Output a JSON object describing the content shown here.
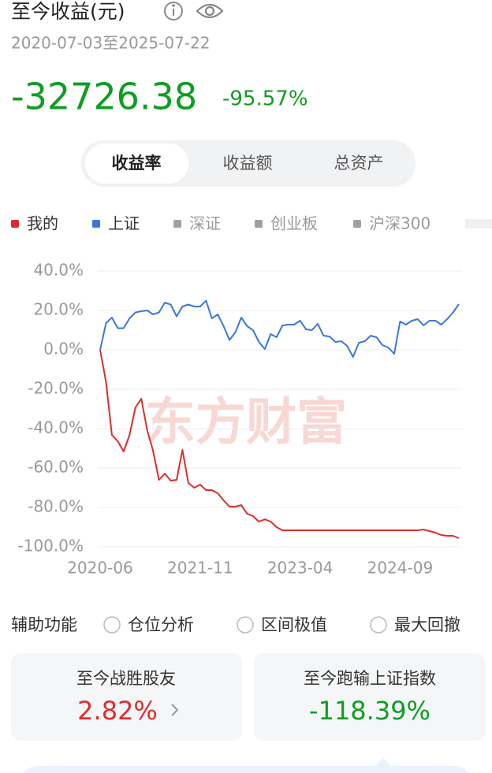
{
  "header": {
    "title": "至今收益(元)",
    "date_range": "2020-07-03至2025-07-22",
    "amount": "-32726.38",
    "percent": "-95.57%"
  },
  "tabs": {
    "items": [
      "收益率",
      "收益额",
      "总资产"
    ],
    "active": 0
  },
  "watermark": "东方财富",
  "chart_data": {
    "type": "line",
    "x": [
      "2020-06",
      "2020-07",
      "2020-08",
      "2020-09",
      "2020-10",
      "2020-11",
      "2020-12",
      "2021-01",
      "2021-02",
      "2021-03",
      "2021-04",
      "2021-05",
      "2021-06",
      "2021-07",
      "2021-08",
      "2021-09",
      "2021-10",
      "2021-11",
      "2021-12",
      "2022-01",
      "2022-02",
      "2022-03",
      "2022-04",
      "2022-05",
      "2022-06",
      "2022-07",
      "2022-08",
      "2022-09",
      "2022-10",
      "2022-11",
      "2022-12",
      "2023-01",
      "2023-02",
      "2023-03",
      "2023-04",
      "2023-05",
      "2023-06",
      "2023-07",
      "2023-08",
      "2023-09",
      "2023-10",
      "2023-11",
      "2023-12",
      "2024-01",
      "2024-02",
      "2024-03",
      "2024-04",
      "2024-05",
      "2024-06",
      "2024-07",
      "2024-08",
      "2024-09",
      "2024-10",
      "2024-11",
      "2024-12",
      "2025-01",
      "2025-02",
      "2025-03",
      "2025-04",
      "2025-05",
      "2025-06",
      "2025-07"
    ],
    "series": [
      {
        "name": "我的",
        "color": "#e02b2b",
        "values": [
          0,
          -16.4,
          -43.2,
          -46.4,
          -51.6,
          -43.2,
          -29.2,
          -24.8,
          -40.8,
          -51.2,
          -66,
          -62.8,
          -66.4,
          -66,
          -50.8,
          -67.6,
          -70,
          -68.4,
          -71.2,
          -71.2,
          -72.8,
          -76.4,
          -79.6,
          -79.6,
          -78.8,
          -83.2,
          -84.4,
          -87.2,
          -86,
          -87.2,
          -90,
          -91.6,
          -91.6,
          -91.6,
          -91.6,
          -91.6,
          -91.6,
          -91.6,
          -91.6,
          -91.6,
          -91.6,
          -91.6,
          -91.6,
          -91.6,
          -91.6,
          -91.6,
          -91.6,
          -91.6,
          -91.6,
          -91.6,
          -91.6,
          -91.6,
          -91.6,
          -91.6,
          -91.6,
          -91.2,
          -92,
          -92.8,
          -94,
          -94.4,
          -94.4,
          -95.6
        ]
      },
      {
        "name": "上证",
        "color": "#3a78d8",
        "values": [
          0,
          13.6,
          16.4,
          11,
          11,
          16,
          19,
          19.6,
          20,
          18,
          19,
          24,
          23,
          17,
          22,
          23,
          22,
          22,
          25,
          16,
          18,
          12,
          5,
          9,
          16.4,
          12,
          10,
          4,
          0.4,
          8,
          6.4,
          12.4,
          12.8,
          12.8,
          14.8,
          10.4,
          10,
          13.2,
          7.2,
          6.8,
          4,
          4.4,
          2,
          -3.6,
          3.6,
          4.4,
          7.2,
          6.4,
          2.4,
          1.2,
          -2,
          14.4,
          12.8,
          14.8,
          15.6,
          12.4,
          14.8,
          14.8,
          12.8,
          15.6,
          19,
          23.2
        ]
      }
    ],
    "inactive_series": [
      {
        "name": "深证",
        "color": "#a0a0a0"
      },
      {
        "name": "创业板",
        "color": "#a0a0a0"
      },
      {
        "name": "沪深300",
        "color": "#a0a0a0"
      }
    ],
    "xlim": [
      "2020-06",
      "2025-07"
    ],
    "xticks": [
      "2020-06",
      "2021-11",
      "2023-04",
      "2024-09"
    ],
    "ylim": [
      -100,
      40
    ],
    "yticks": [
      {
        "value": -100,
        "label": "-100.0%"
      },
      {
        "value": -80,
        "label": "-80.0%"
      },
      {
        "value": -60,
        "label": "-60.0%"
      },
      {
        "value": -40,
        "label": "-40.0%"
      },
      {
        "value": -20,
        "label": "-20.0%"
      },
      {
        "value": 0,
        "label": "0.0%"
      },
      {
        "value": 20,
        "label": "20.0%"
      },
      {
        "value": 40,
        "label": "40.0%"
      }
    ],
    "grid": true
  },
  "tools": {
    "label": "辅助功能",
    "options": [
      "仓位分析",
      "区间极值",
      "最大回撤"
    ]
  },
  "cards": [
    {
      "label": "至今战胜股友",
      "value": "2.82%"
    },
    {
      "label": "至今跑输上证指数",
      "value": "-118.39%"
    }
  ]
}
